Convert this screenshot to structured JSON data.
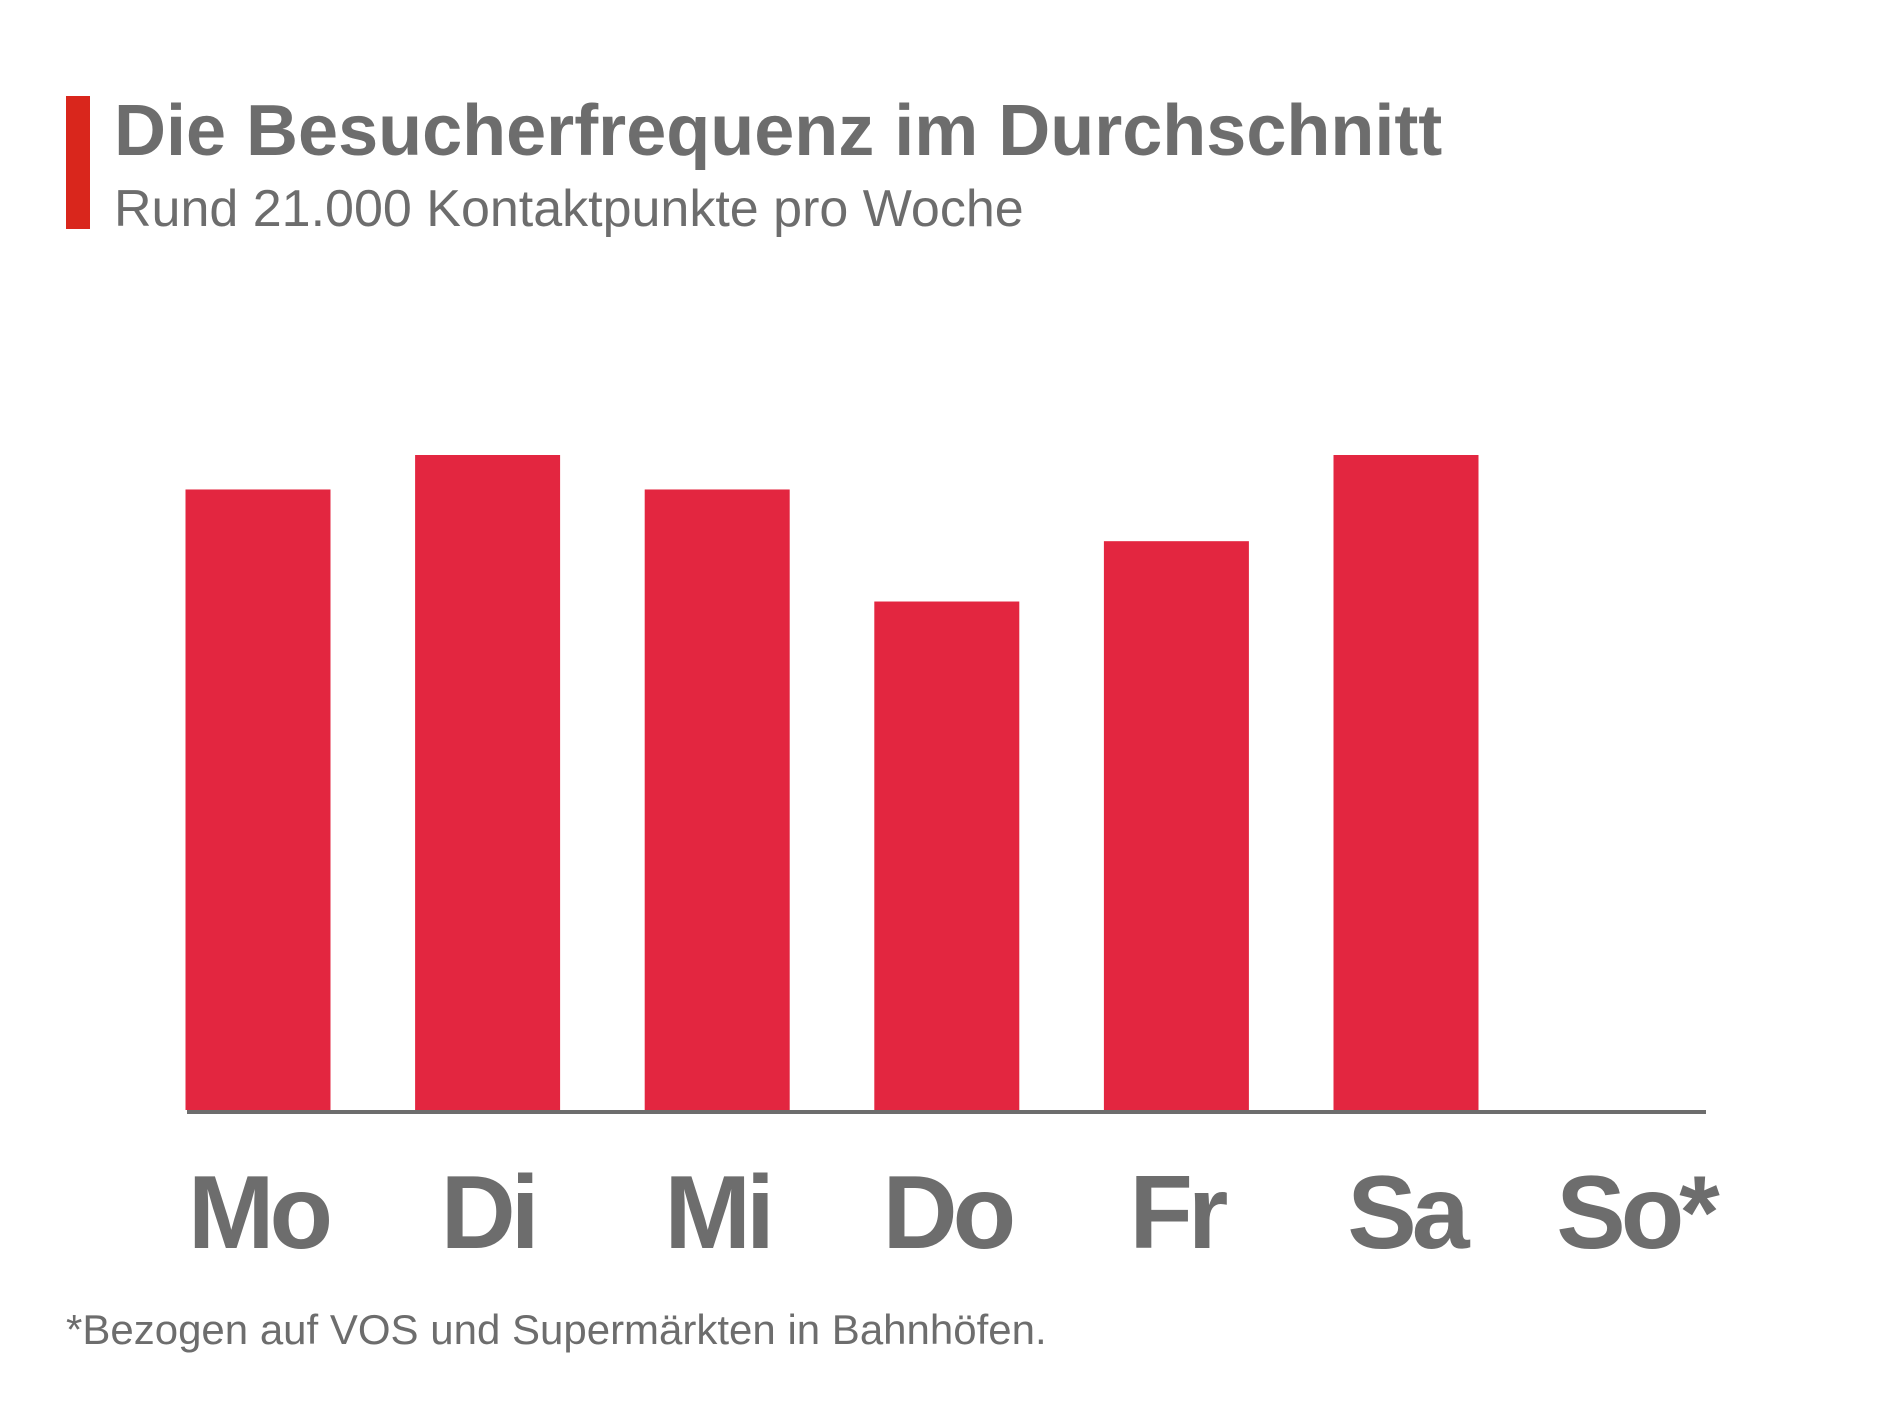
{
  "chart_data": {
    "type": "bar",
    "title": "Die Besucherfrequenz im Durchschnitt",
    "subtitle": "Rund 21.000 Kontaktpunkte pro Woche",
    "note": "*Bezogen auf VOS und Supermärkten in Bahnhöfen.",
    "categories": [
      "Mo",
      "Di",
      "Mi",
      "Do",
      "Fr",
      "Sa",
      "So*"
    ],
    "values": [
      3600,
      3800,
      3600,
      2950,
      3300,
      3800,
      null
    ],
    "color": "#e32640",
    "ylim": [
      0,
      3800
    ]
  }
}
